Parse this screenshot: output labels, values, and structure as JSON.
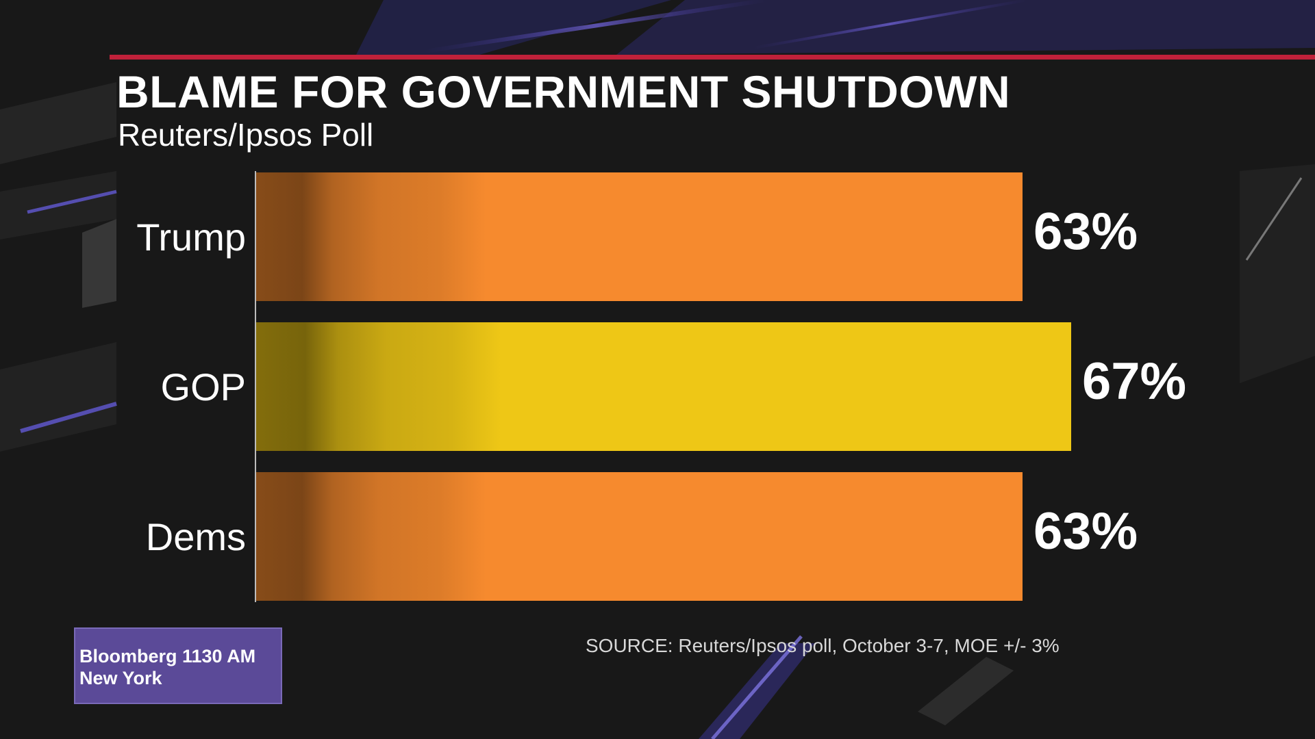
{
  "header": {
    "title": "BLAME FOR GOVERNMENT SHUTDOWN",
    "subtitle": "Reuters/Ipsos Poll"
  },
  "footer": {
    "source": "SOURCE: Reuters/Ipsos poll, October 3-7, MOE +/- 3%"
  },
  "station_bug": {
    "line1": "Bloomberg 1130 AM",
    "line2": "New York"
  },
  "colors": {
    "accent_rule": "#c0213a",
    "bar_orange": "#f68a2e",
    "bar_yellow": "#eec716",
    "bug_purple": "#5b4a98"
  },
  "chart_data": {
    "type": "bar",
    "orientation": "horizontal",
    "title": "BLAME FOR GOVERNMENT SHUTDOWN",
    "subtitle": "Reuters/Ipsos Poll",
    "categories": [
      "Trump",
      "GOP",
      "Dems"
    ],
    "values": [
      63,
      67,
      63
    ],
    "value_labels": [
      "63%",
      "67%",
      "63%"
    ],
    "bar_colors": [
      "#f68a2e",
      "#eec716",
      "#f68a2e"
    ],
    "xlim": [
      0,
      67
    ],
    "grid": false,
    "legend": "none"
  }
}
